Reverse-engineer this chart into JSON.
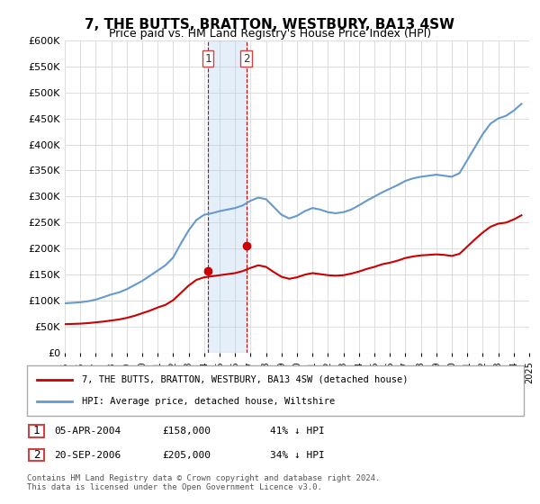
{
  "title": "7, THE BUTTS, BRATTON, WESTBURY, BA13 4SW",
  "subtitle": "Price paid vs. HM Land Registry's House Price Index (HPI)",
  "ylabel_ticks": [
    "£0",
    "£50K",
    "£100K",
    "£150K",
    "£200K",
    "£250K",
    "£300K",
    "£350K",
    "£400K",
    "£450K",
    "£500K",
    "£550K",
    "£600K"
  ],
  "ytick_values": [
    0,
    50000,
    100000,
    150000,
    200000,
    250000,
    300000,
    350000,
    400000,
    450000,
    500000,
    550000,
    600000
  ],
  "hpi_color": "#6699cc",
  "price_color": "#cc0000",
  "sale1_date": 2004.25,
  "sale1_price": 158000,
  "sale2_date": 2006.72,
  "sale2_price": 205000,
  "sale1_label": "1",
  "sale2_label": "2",
  "legend_property": "7, THE BUTTS, BRATTON, WESTBURY, BA13 4SW (detached house)",
  "legend_hpi": "HPI: Average price, detached house, Wiltshire",
  "table_row1": [
    "1",
    "05-APR-2004",
    "£158,000",
    "41% ↓ HPI"
  ],
  "table_row2": [
    "2",
    "20-SEP-2006",
    "£205,000",
    "34% ↓ HPI"
  ],
  "footer": "Contains HM Land Registry data © Crown copyright and database right 2024.\nThis data is licensed under the Open Government Licence v3.0.",
  "hpi_data": {
    "years": [
      1995,
      1995.5,
      1996,
      1996.5,
      1997,
      1997.5,
      1998,
      1998.5,
      1999,
      1999.5,
      2000,
      2000.5,
      2001,
      2001.5,
      2002,
      2002.5,
      2003,
      2003.5,
      2004,
      2004.5,
      2005,
      2005.5,
      2006,
      2006.5,
      2007,
      2007.5,
      2008,
      2008.5,
      2009,
      2009.5,
      2010,
      2010.5,
      2011,
      2011.5,
      2012,
      2012.5,
      2013,
      2013.5,
      2014,
      2014.5,
      2015,
      2015.5,
      2016,
      2016.5,
      2017,
      2017.5,
      2018,
      2018.5,
      2019,
      2019.5,
      2020,
      2020.5,
      2021,
      2021.5,
      2022,
      2022.5,
      2023,
      2023.5,
      2024,
      2024.5
    ],
    "values": [
      95000,
      96000,
      97000,
      99000,
      102000,
      107000,
      112000,
      116000,
      122000,
      130000,
      138000,
      148000,
      158000,
      168000,
      183000,
      210000,
      235000,
      255000,
      265000,
      268000,
      272000,
      275000,
      278000,
      283000,
      292000,
      298000,
      295000,
      280000,
      265000,
      258000,
      263000,
      272000,
      278000,
      275000,
      270000,
      268000,
      270000,
      275000,
      283000,
      292000,
      300000,
      308000,
      315000,
      322000,
      330000,
      335000,
      338000,
      340000,
      342000,
      340000,
      338000,
      345000,
      370000,
      395000,
      420000,
      440000,
      450000,
      455000,
      465000,
      478000
    ]
  },
  "price_index_data": {
    "years": [
      1995,
      1995.5,
      1996,
      1996.5,
      1997,
      1997.5,
      1998,
      1998.5,
      1999,
      1999.5,
      2000,
      2000.5,
      2001,
      2001.5,
      2002,
      2002.5,
      2003,
      2003.5,
      2004,
      2004.5,
      2005,
      2005.5,
      2006,
      2006.5,
      2007,
      2007.5,
      2008,
      2008.5,
      2009,
      2009.5,
      2010,
      2010.5,
      2011,
      2011.5,
      2012,
      2012.5,
      2013,
      2013.5,
      2014,
      2014.5,
      2015,
      2015.5,
      2016,
      2016.5,
      2017,
      2017.5,
      2018,
      2018.5,
      2019,
      2019.5,
      2020,
      2020.5,
      2021,
      2021.5,
      2022,
      2022.5,
      2023,
      2023.5,
      2024,
      2024.5
    ],
    "values": [
      55000,
      55500,
      56000,
      57000,
      58500,
      60000,
      62000,
      64000,
      67000,
      71000,
      76000,
      81000,
      87000,
      92000,
      101000,
      115000,
      129000,
      140000,
      145000,
      147000,
      149000,
      151000,
      153000,
      157000,
      163000,
      168000,
      165000,
      155000,
      146000,
      142000,
      145000,
      150000,
      153000,
      151000,
      149000,
      148000,
      149000,
      152000,
      156000,
      161000,
      165000,
      170000,
      173000,
      177000,
      182000,
      185000,
      187000,
      188000,
      189000,
      188000,
      186000,
      190000,
      204000,
      218000,
      231000,
      242000,
      248000,
      250000,
      256000,
      264000
    ]
  },
  "xmin": 1995,
  "xmax": 2025,
  "ymin": 0,
  "ymax": 600000
}
